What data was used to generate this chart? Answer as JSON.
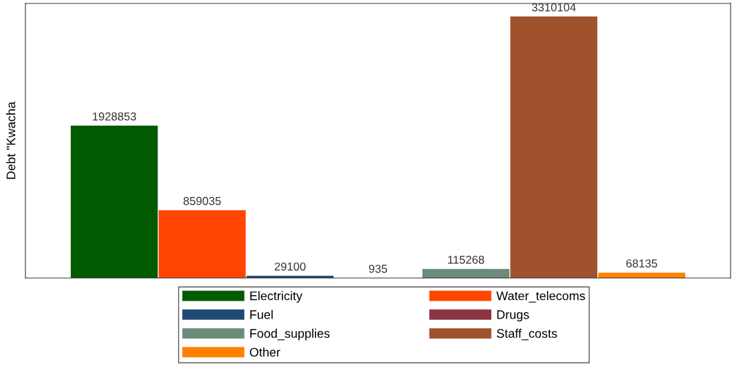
{
  "chart_data": {
    "type": "bar",
    "ylabel": "Debt \"Kwacha",
    "categories": [
      null
    ],
    "series": [
      {
        "name": "Electricity",
        "color": "#005a00",
        "values": [
          1928853
        ]
      },
      {
        "name": "Water_telecoms",
        "color": "#ff4500",
        "values": [
          859035
        ]
      },
      {
        "name": "Fuel",
        "color": "#1f4a73",
        "values": [
          29100
        ]
      },
      {
        "name": "Drugs",
        "color": "#8b3543",
        "values": [
          935
        ]
      },
      {
        "name": "Food_supplies",
        "color": "#6b8b7b",
        "values": [
          115268
        ]
      },
      {
        "name": "Staff_costs",
        "color": "#a0522d",
        "values": [
          3310104
        ]
      },
      {
        "name": "Other",
        "color": "#ff8000",
        "values": [
          68135
        ]
      }
    ],
    "data_labels": true,
    "legend": "bottom",
    "grid": false,
    "tick_labels": false
  }
}
